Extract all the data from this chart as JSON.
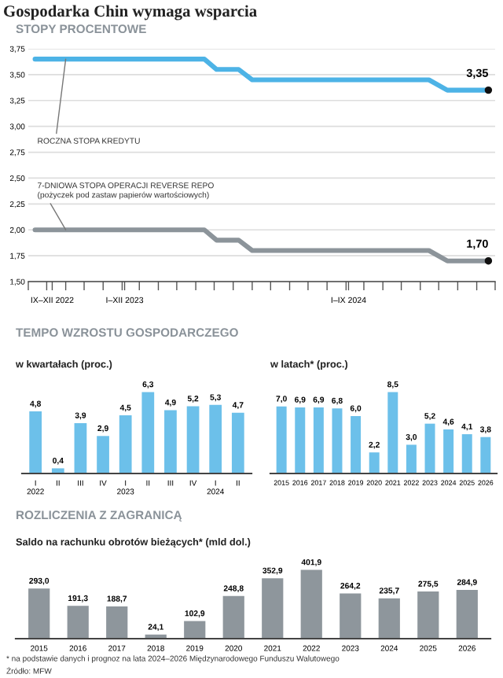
{
  "chart_data": [
    {
      "type": "line",
      "title": "Gospodarka Chin wymaga wsparcia",
      "subtitle": "STOPY PROCENTOWE",
      "x": [
        "2022-09-12",
        "2023-06-15",
        "2023-07-05",
        "2023-08-10",
        "2023-09-01",
        "2024-06-15",
        "2024-07-15",
        "2024-09-20"
      ],
      "series": [
        {
          "color": "#4db3e6",
          "values": [
            3.65,
            3.65,
            3.55,
            3.55,
            3.45,
            3.45,
            3.35,
            3.35
          ],
          "value_labels": [
            null,
            null,
            null,
            null,
            null,
            null,
            null,
            "3,35"
          ]
        },
        {
          "color": "#8c949a",
          "values": [
            2.0,
            2.0,
            1.9,
            1.9,
            1.8,
            1.8,
            1.7,
            1.7
          ],
          "value_labels": [
            null,
            null,
            null,
            null,
            null,
            null,
            null,
            "1,70"
          ]
        }
      ],
      "ylim": [
        1.5,
        3.75
      ],
      "yticks": [
        {
          "value": 1.5,
          "label": "1,50"
        },
        {
          "value": 1.75,
          "label": "1,75"
        },
        {
          "value": 2.0,
          "label": "2,00"
        },
        {
          "value": 2.25,
          "label": "2,25"
        },
        {
          "value": 2.5,
          "label": "2,50"
        },
        {
          "value": 2.75,
          "label": "2,75"
        },
        {
          "value": 3.0,
          "label": "3,00"
        },
        {
          "value": 3.25,
          "label": "3,25"
        },
        {
          "value": 3.5,
          "label": "3,50"
        },
        {
          "value": 3.75,
          "label": "3,75"
        }
      ],
      "xlim": [
        "2022-09-01",
        "2024-10-01"
      ],
      "xticks": [
        {
          "value": "2022-09-01",
          "label": null
        },
        {
          "value": "2022-10-01",
          "label": null
        },
        {
          "value": "2022-11-01",
          "label": null
        },
        {
          "value": "2022-12-01",
          "label": null
        },
        {
          "value": "2023-01-01",
          "label": null
        },
        {
          "value": "2023-02-01",
          "label": null
        },
        {
          "value": "2023-03-01",
          "label": null
        },
        {
          "value": "2023-04-01",
          "label": null
        },
        {
          "value": "2023-05-01",
          "label": null
        },
        {
          "value": "2023-06-01",
          "label": null
        },
        {
          "value": "2023-07-01",
          "label": null
        },
        {
          "value": "2023-08-01",
          "label": null
        },
        {
          "value": "2023-09-01",
          "label": null
        },
        {
          "value": "2023-10-01",
          "label": null
        },
        {
          "value": "2023-11-01",
          "label": null
        },
        {
          "value": "2023-12-01",
          "label": null
        },
        {
          "value": "2024-01-01",
          "label": null
        },
        {
          "value": "2024-02-01",
          "label": null
        },
        {
          "value": "2024-03-01",
          "label": null
        },
        {
          "value": "2024-04-01",
          "label": null
        },
        {
          "value": "2024-05-01",
          "label": null
        },
        {
          "value": "2024-06-01",
          "label": null
        },
        {
          "value": "2024-07-01",
          "label": null
        },
        {
          "value": "2024-08-01",
          "label": null
        },
        {
          "value": "2024-09-01",
          "label": null
        },
        {
          "value": "2024-10-01",
          "label": null
        },
        {
          "value": "2022-10-10",
          "label": "IX–XII 2022"
        },
        {
          "value": "2023-02-05",
          "label": "I–XII 2023"
        },
        {
          "value": "2024-02-05",
          "label": "I–IX 2024"
        }
      ],
      "grid": "y",
      "line_style": "solid",
      "annotations": [
        {
          "text": "ROCZNA STOPA KREDYTU",
          "x": "2022-11-01",
          "y": 3.65
        },
        {
          "text": "7-DNIOWA STOPA OPERACJI REVERSE REPO\n(pożyczek pod zastaw papierów wartościowych)",
          "x": "2022-11-01",
          "y": 2.0
        }
      ]
    },
    {
      "type": "bar",
      "title": "TEMPO WZROSTU GOSPODARCZEGO",
      "subtitle": "w kwartałach (proc.)",
      "categories": [
        "I\n2022",
        "II",
        "III",
        "IV",
        "I\n2023",
        "II",
        "III",
        "IV",
        "I\n2024",
        "II"
      ],
      "values": [
        4.8,
        0.4,
        3.9,
        2.9,
        4.5,
        6.3,
        4.9,
        5.2,
        5.3,
        4.7
      ],
      "color": "#6cc0ea",
      "value_labels": [
        "4,8",
        "0,4",
        "3,9",
        "2,9",
        "4,5",
        "6,3",
        "4,9",
        "5,2",
        "5,3",
        "4,7"
      ],
      "tick_labels": "x"
    },
    {
      "type": "bar",
      "subtitle": "w latach* (proc.)",
      "categories": [
        "2015",
        "2016",
        "2017",
        "2018",
        "2019",
        "2020",
        "2021",
        "2022",
        "2023",
        "2024",
        "2025",
        "2026"
      ],
      "values": [
        7.0,
        6.9,
        6.9,
        6.8,
        6.0,
        2.2,
        8.5,
        3.0,
        5.2,
        4.6,
        4.1,
        3.8
      ],
      "color": "#6cc0ea",
      "value_labels": [
        "7,0",
        "6,9",
        "6,9",
        "6,8",
        "6,0",
        "2,2",
        "8,5",
        "3,0",
        "5,2",
        "4,6",
        "4,1",
        "3,8"
      ],
      "tick_labels": "x"
    },
    {
      "type": "bar",
      "title": "ROZLICZENIA Z ZAGRANICĄ",
      "subtitle": "Saldo na rachunku obrotów bieżących* (mld dol.)",
      "categories": [
        "2015",
        "2016",
        "2017",
        "2018",
        "2019",
        "2020",
        "2021",
        "2022",
        "2023",
        "2024",
        "2025",
        "2026"
      ],
      "values": [
        293.0,
        191.3,
        188.7,
        24.1,
        102.9,
        248.8,
        352.9,
        401.9,
        264.2,
        235.7,
        275.5,
        284.9
      ],
      "color": "#8e969c",
      "value_labels": [
        "293,0",
        "191,3",
        "188,7",
        "24,1",
        "102,9",
        "248,8",
        "352,9",
        "401,9",
        "264,2",
        "235,7",
        "275,5",
        "284,9"
      ],
      "tick_labels": "x",
      "annotations": [
        "* na podstawie danych i prognoz na lata 2024–2026 Międzynarodowego Funduszu Walutowego",
        "Źródło: MFW"
      ]
    }
  ]
}
